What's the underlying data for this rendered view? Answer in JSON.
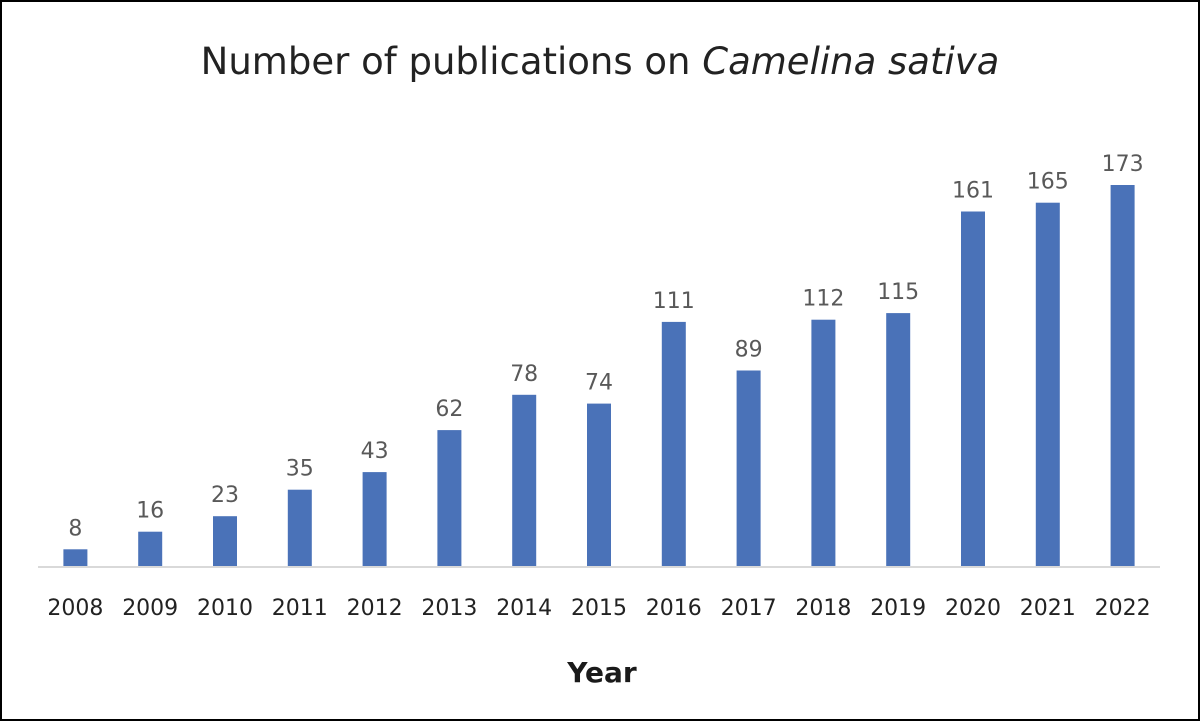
{
  "chart_data": {
    "type": "bar",
    "title": "Number of publications on ",
    "title_italic": "Camelina sativa",
    "xlabel": "Year",
    "ylabel": "",
    "categories": [
      "2008",
      "2009",
      "2010",
      "2011",
      "2012",
      "2013",
      "2014",
      "2015",
      "2016",
      "2017",
      "2018",
      "2019",
      "2020",
      "2021",
      "2022"
    ],
    "values": [
      8,
      16,
      23,
      35,
      43,
      62,
      78,
      74,
      111,
      89,
      112,
      115,
      161,
      165,
      173
    ],
    "data_labels": [
      "8",
      "16",
      "23",
      "35",
      "43",
      "62",
      "78",
      "74",
      "111",
      "89",
      "112",
      "115",
      "161",
      "165",
      "173"
    ],
    "ylim": [
      0,
      173
    ],
    "grid": false,
    "legend": "none",
    "bar_color": "#4a72b8",
    "axis_color": "#d9d9d9"
  }
}
